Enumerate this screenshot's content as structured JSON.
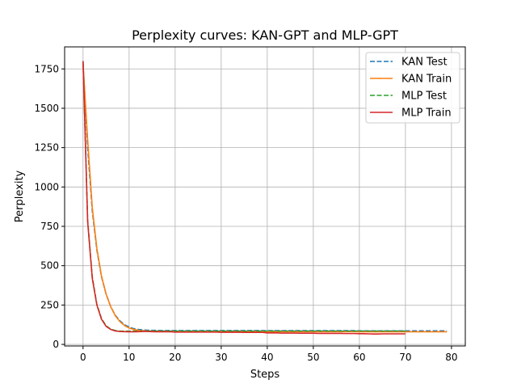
{
  "chart_data": {
    "type": "line",
    "title": "Perplexity curves: KAN-GPT and MLP-GPT",
    "xlabel": "Steps",
    "ylabel": "Perplexity",
    "xlim": [
      -4,
      83
    ],
    "ylim": [
      -10,
      1890
    ],
    "xticks": [
      0,
      10,
      20,
      30,
      40,
      50,
      60,
      70,
      80
    ],
    "yticks": [
      0,
      250,
      500,
      750,
      1000,
      1250,
      1500,
      1750
    ],
    "grid": true,
    "legend_position": "top-right",
    "series": [
      {
        "name": "KAN Test",
        "color": "#1f77b4",
        "dashed": true,
        "values": [
          1780,
          1250,
          850,
          600,
          430,
          320,
          240,
          185,
          150,
          125,
          110,
          100,
          95,
          92,
          90,
          89,
          89,
          88,
          88,
          88,
          88,
          88,
          88,
          88,
          88,
          88,
          88,
          88,
          88,
          88,
          88,
          88,
          88,
          88,
          88,
          88,
          88,
          88,
          88,
          88,
          87,
          87,
          87,
          87,
          87,
          87,
          87,
          87,
          87,
          87,
          87,
          87,
          87,
          87,
          87,
          87,
          87,
          87,
          87,
          87,
          86,
          86,
          86,
          86,
          86,
          86,
          86,
          86,
          86,
          86,
          86,
          86,
          86,
          86,
          86,
          86,
          86,
          86,
          86,
          86
        ]
      },
      {
        "name": "KAN Train",
        "color": "#ff7f0e",
        "dashed": false,
        "values": [
          1780,
          1300,
          870,
          610,
          435,
          320,
          240,
          182,
          145,
          120,
          104,
          95,
          90,
          87,
          85,
          84,
          84,
          83,
          83,
          83,
          82,
          82,
          82,
          82,
          82,
          82,
          82,
          82,
          82,
          82,
          82,
          82,
          82,
          82,
          82,
          82,
          82,
          82,
          82,
          82,
          81,
          81,
          81,
          81,
          81,
          81,
          81,
          81,
          81,
          81,
          81,
          81,
          81,
          81,
          81,
          81,
          81,
          81,
          81,
          81,
          80,
          80,
          80,
          80,
          80,
          80,
          80,
          80,
          80,
          80,
          80,
          80,
          80,
          80,
          80,
          80,
          80,
          80,
          80,
          80
        ]
      },
      {
        "name": "MLP Test",
        "color": "#2ca02c",
        "dashed": true,
        "values": [
          1800,
          790,
          430,
          255,
          165,
          118,
          97,
          88,
          85,
          84,
          84,
          85,
          85,
          85,
          85,
          85,
          85,
          85,
          85,
          85,
          85,
          85,
          85,
          85,
          85,
          85,
          85,
          85,
          85,
          85,
          85,
          85,
          85,
          85,
          85,
          85,
          85,
          85,
          85,
          85,
          85,
          85,
          85,
          85,
          85,
          85,
          85,
          85,
          85,
          85,
          85,
          85,
          85,
          85,
          85,
          85,
          85,
          85,
          85,
          85,
          85,
          85,
          85,
          85,
          85,
          85,
          85,
          85,
          85,
          85,
          85
        ]
      },
      {
        "name": "MLP Train",
        "color": "#d62728",
        "dashed": false,
        "values": [
          1800,
          780,
          420,
          250,
          160,
          115,
          95,
          85,
          82,
          81,
          80,
          80,
          81,
          82,
          82,
          81,
          80,
          80,
          80,
          80,
          78,
          78,
          78,
          78,
          78,
          78,
          78,
          78,
          78,
          78,
          77,
          77,
          77,
          77,
          77,
          76,
          76,
          76,
          76,
          76,
          73,
          73,
          73,
          72,
          72,
          72,
          72,
          71,
          71,
          71,
          71,
          70,
          70,
          70,
          70,
          70,
          70,
          69,
          69,
          69,
          68,
          68,
          67,
          66,
          66,
          67,
          67,
          67,
          67,
          67,
          67
        ]
      }
    ]
  }
}
